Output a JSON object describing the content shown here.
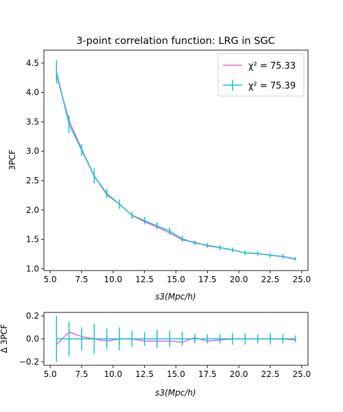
{
  "chart_data": [
    {
      "type": "line",
      "title": "3-point correlation function: LRG in SGC",
      "xlabel": "s3(Mpc/h)",
      "ylabel": "3PCF",
      "xlim": [
        4.5,
        25.5
      ],
      "ylim": [
        0.97,
        4.72
      ],
      "xticks": [
        "5.0",
        "7.5",
        "10.0",
        "12.5",
        "15.0",
        "17.5",
        "20.0",
        "22.5",
        "25.0"
      ],
      "yticks": [
        "1.0",
        "1.5",
        "2.0",
        "2.5",
        "3.0",
        "3.5",
        "4.0",
        "4.5"
      ],
      "legend_position": "top-right",
      "x": [
        5.5,
        6.5,
        7.5,
        8.5,
        9.5,
        10.5,
        11.5,
        12.5,
        13.5,
        14.5,
        15.5,
        16.5,
        17.5,
        18.5,
        19.5,
        20.5,
        21.5,
        22.5,
        23.5,
        24.5
      ],
      "series": [
        {
          "name": "χ² = 75.33",
          "color": "#d966e0",
          "style": "line",
          "values": [
            4.3,
            3.52,
            3.04,
            2.58,
            2.26,
            2.1,
            1.91,
            1.8,
            1.71,
            1.61,
            1.49,
            1.45,
            1.39,
            1.36,
            1.32,
            1.27,
            1.26,
            1.23,
            1.21,
            1.16
          ]
        },
        {
          "name": "χ² = 75.39",
          "color": "#17becf",
          "style": "errorbar",
          "values": [
            4.35,
            3.46,
            3.02,
            2.58,
            2.28,
            2.1,
            1.91,
            1.82,
            1.73,
            1.64,
            1.51,
            1.44,
            1.4,
            1.36,
            1.32,
            1.27,
            1.26,
            1.23,
            1.21,
            1.17
          ],
          "errors": [
            0.2,
            0.15,
            0.1,
            0.13,
            0.08,
            0.08,
            0.06,
            0.06,
            0.06,
            0.06,
            0.05,
            0.04,
            0.04,
            0.04,
            0.04,
            0.04,
            0.04,
            0.04,
            0.04,
            0.03
          ]
        }
      ]
    },
    {
      "type": "line",
      "title": "",
      "xlabel": "s3(Mpc/h)",
      "ylabel": "Δ 3PCF",
      "xlim": [
        4.5,
        25.5
      ],
      "ylim": [
        -0.23,
        0.23
      ],
      "xticks": [
        "5.0",
        "7.5",
        "10.0",
        "12.5",
        "15.0",
        "17.5",
        "20.0",
        "22.5",
        "25.0"
      ],
      "yticks": [
        "−0.2",
        "0.0",
        "0.2"
      ],
      "x": [
        5.5,
        6.5,
        7.5,
        8.5,
        9.5,
        10.5,
        11.5,
        12.5,
        13.5,
        14.5,
        15.5,
        16.5,
        17.5,
        18.5,
        19.5,
        20.5,
        21.5,
        22.5,
        23.5,
        24.5
      ],
      "series": [
        {
          "color": "#d966e0",
          "style": "line",
          "values": [
            -0.05,
            0.06,
            0.02,
            0.0,
            -0.02,
            0.0,
            0.0,
            -0.02,
            -0.02,
            -0.02,
            -0.03,
            0.01,
            -0.02,
            -0.01,
            0.0,
            0.0,
            0.0,
            0.0,
            0.0,
            -0.01
          ]
        },
        {
          "color": "#17becf",
          "style": "errorbar",
          "values": [
            0,
            0,
            0,
            0,
            0,
            0,
            0,
            0,
            0,
            0,
            0,
            0,
            0,
            0,
            0,
            0,
            0,
            0,
            0,
            0
          ],
          "errors": [
            0.2,
            0.15,
            0.1,
            0.13,
            0.09,
            0.1,
            0.07,
            0.06,
            0.08,
            0.07,
            0.06,
            0.04,
            0.04,
            0.04,
            0.05,
            0.05,
            0.04,
            0.05,
            0.04,
            0.03
          ]
        }
      ]
    }
  ]
}
